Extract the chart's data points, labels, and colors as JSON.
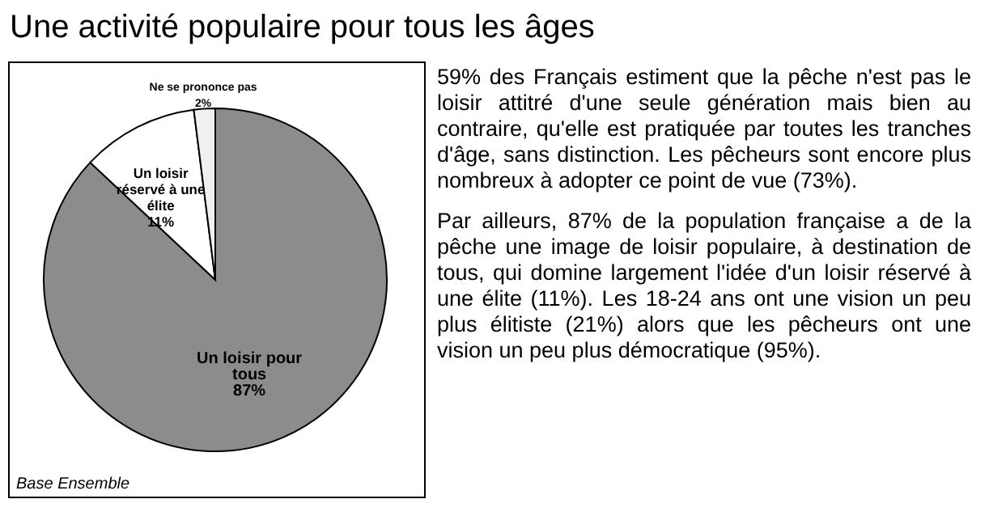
{
  "chart_data": {
    "type": "pie",
    "title": "Une activité populaire pour tous les âges",
    "categories": [
      "Un loisir pour tous",
      "Un loisir réservé à une élite",
      "Ne se prononce pas"
    ],
    "values": [
      87,
      11,
      2
    ],
    "colors": [
      "#8c8c8c",
      "#ffffff",
      "#f0f0f0"
    ],
    "value_labels": [
      "87%",
      "11%",
      "2%"
    ],
    "annotations": [
      "Base Ensemble",
      "59% des Français estiment que la pêche n'est pas le loisir attitré d'une seule génération mais bien au contraire, qu'elle est pratiquée par toutes les tranches d'âge, sans distinction. Les pêcheurs sont encore plus nombreux à adopter ce point de vue (73%).",
      "Par ailleurs, 87% de la population française a de la pêche une image de loisir populaire, à destination de tous, qui domine largement l'idée d'un loisir réservé à une élite (11%). Les 18-24 ans ont une vision un peu plus élitiste (21%) alors que les pêcheurs ont une vision un peu plus démocratique (95%)."
    ]
  }
}
